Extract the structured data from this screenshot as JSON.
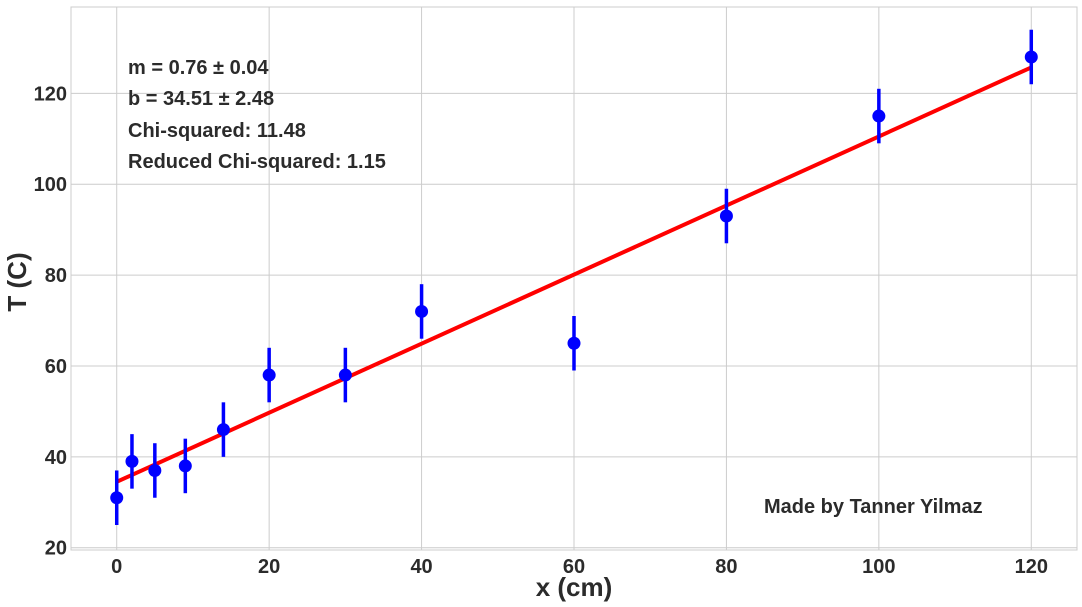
{
  "chart_data": {
    "type": "scatter",
    "xlabel": "x (cm)",
    "ylabel": "T (C)",
    "xlim": [
      -6,
      126
    ],
    "ylim": [
      19.5,
      139
    ],
    "xticks": [
      0,
      20,
      40,
      60,
      80,
      100,
      120
    ],
    "yticks": [
      20,
      40,
      60,
      80,
      100,
      120
    ],
    "grid": true,
    "series": [
      {
        "kind": "errorbar",
        "color": "#0000ff",
        "points": [
          {
            "x": 0,
            "y": 31,
            "err": 6
          },
          {
            "x": 2,
            "y": 39,
            "err": 6
          },
          {
            "x": 5,
            "y": 37,
            "err": 6
          },
          {
            "x": 9,
            "y": 38,
            "err": 6
          },
          {
            "x": 14,
            "y": 46,
            "err": 6
          },
          {
            "x": 20,
            "y": 58,
            "err": 6
          },
          {
            "x": 30,
            "y": 58,
            "err": 6
          },
          {
            "x": 40,
            "y": 72,
            "err": 6
          },
          {
            "x": 60,
            "y": 65,
            "err": 6
          },
          {
            "x": 80,
            "y": 93,
            "err": 6
          },
          {
            "x": 100,
            "y": 115,
            "err": 6
          },
          {
            "x": 120,
            "y": 128,
            "err": 6
          }
        ]
      },
      {
        "kind": "fit-line",
        "color": "#ff0000",
        "x": [
          0,
          120
        ],
        "y": [
          34.51,
          125.71
        ]
      }
    ],
    "annotations": {
      "slope": "m = 0.76 ± 0.04",
      "intercept": "b = 34.51 ± 2.48",
      "chi_squared": "Chi-squared: 11.48",
      "reduced_chi_squared": "Reduced Chi-squared: 1.15",
      "credit": "Made by Tanner Yilmaz"
    }
  }
}
